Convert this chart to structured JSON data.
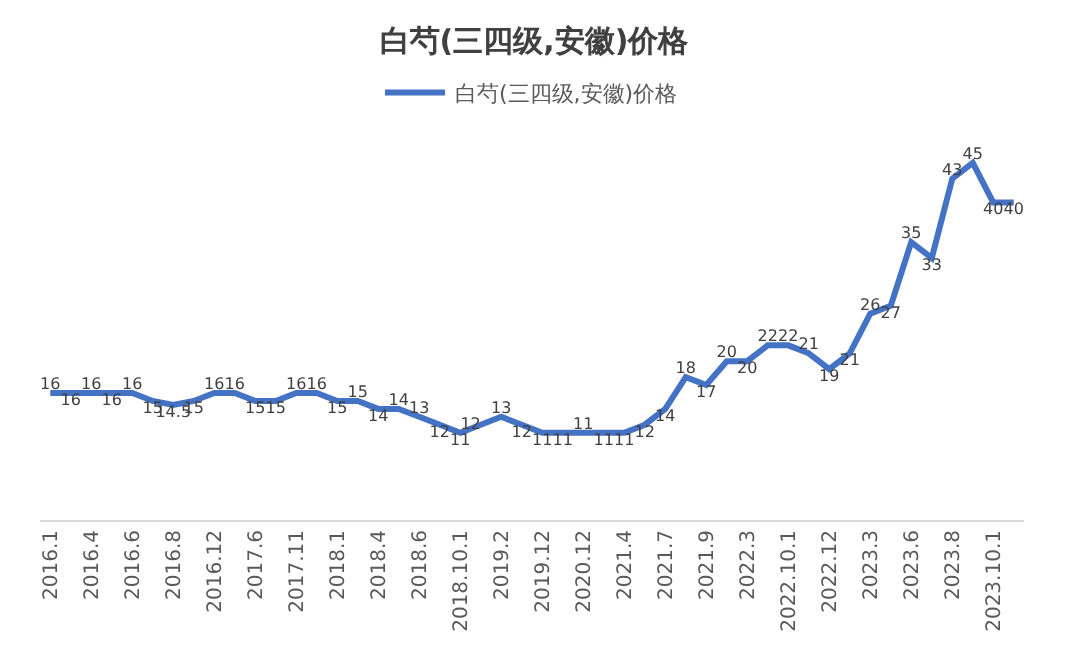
{
  "chart_data": {
    "type": "line",
    "title": "白芍(三四级,安徽)价格",
    "categories": [
      "2016.1",
      null,
      "2016.4",
      null,
      "2016.6",
      null,
      "2016.8",
      null,
      "2016.12",
      null,
      "2017.6",
      null,
      "2017.11",
      null,
      "2018.1",
      null,
      "2018.4",
      null,
      "2018.6",
      null,
      "2018.10.1",
      null,
      "2019.2",
      null,
      "2019.12",
      null,
      "2020.12",
      null,
      "2021.4",
      null,
      "2021.7",
      null,
      "2021.9",
      null,
      "2022.3",
      null,
      "2022.10.1",
      null,
      "2022.12",
      null,
      "2023.3",
      null,
      "2023.6",
      null,
      "2023.8",
      null,
      "2023.10.1",
      null
    ],
    "series": [
      {
        "name": "白芍(三四级,安徽)价格",
        "color": "#4472c4",
        "values": [
          16,
          16,
          16,
          16,
          16,
          15,
          14.5,
          15,
          16,
          16,
          15,
          15,
          16,
          16,
          15,
          15,
          14,
          14,
          13,
          12,
          11,
          12,
          13,
          12,
          11,
          11,
          11,
          11,
          11,
          12,
          14,
          18,
          17,
          20,
          20,
          22,
          22,
          21,
          19,
          21,
          26,
          27,
          35,
          33,
          43,
          45,
          40,
          40
        ]
      }
    ],
    "data_labels": true,
    "tick_labels": "x",
    "legend": "top",
    "marker": "none",
    "line_style": "solid"
  }
}
